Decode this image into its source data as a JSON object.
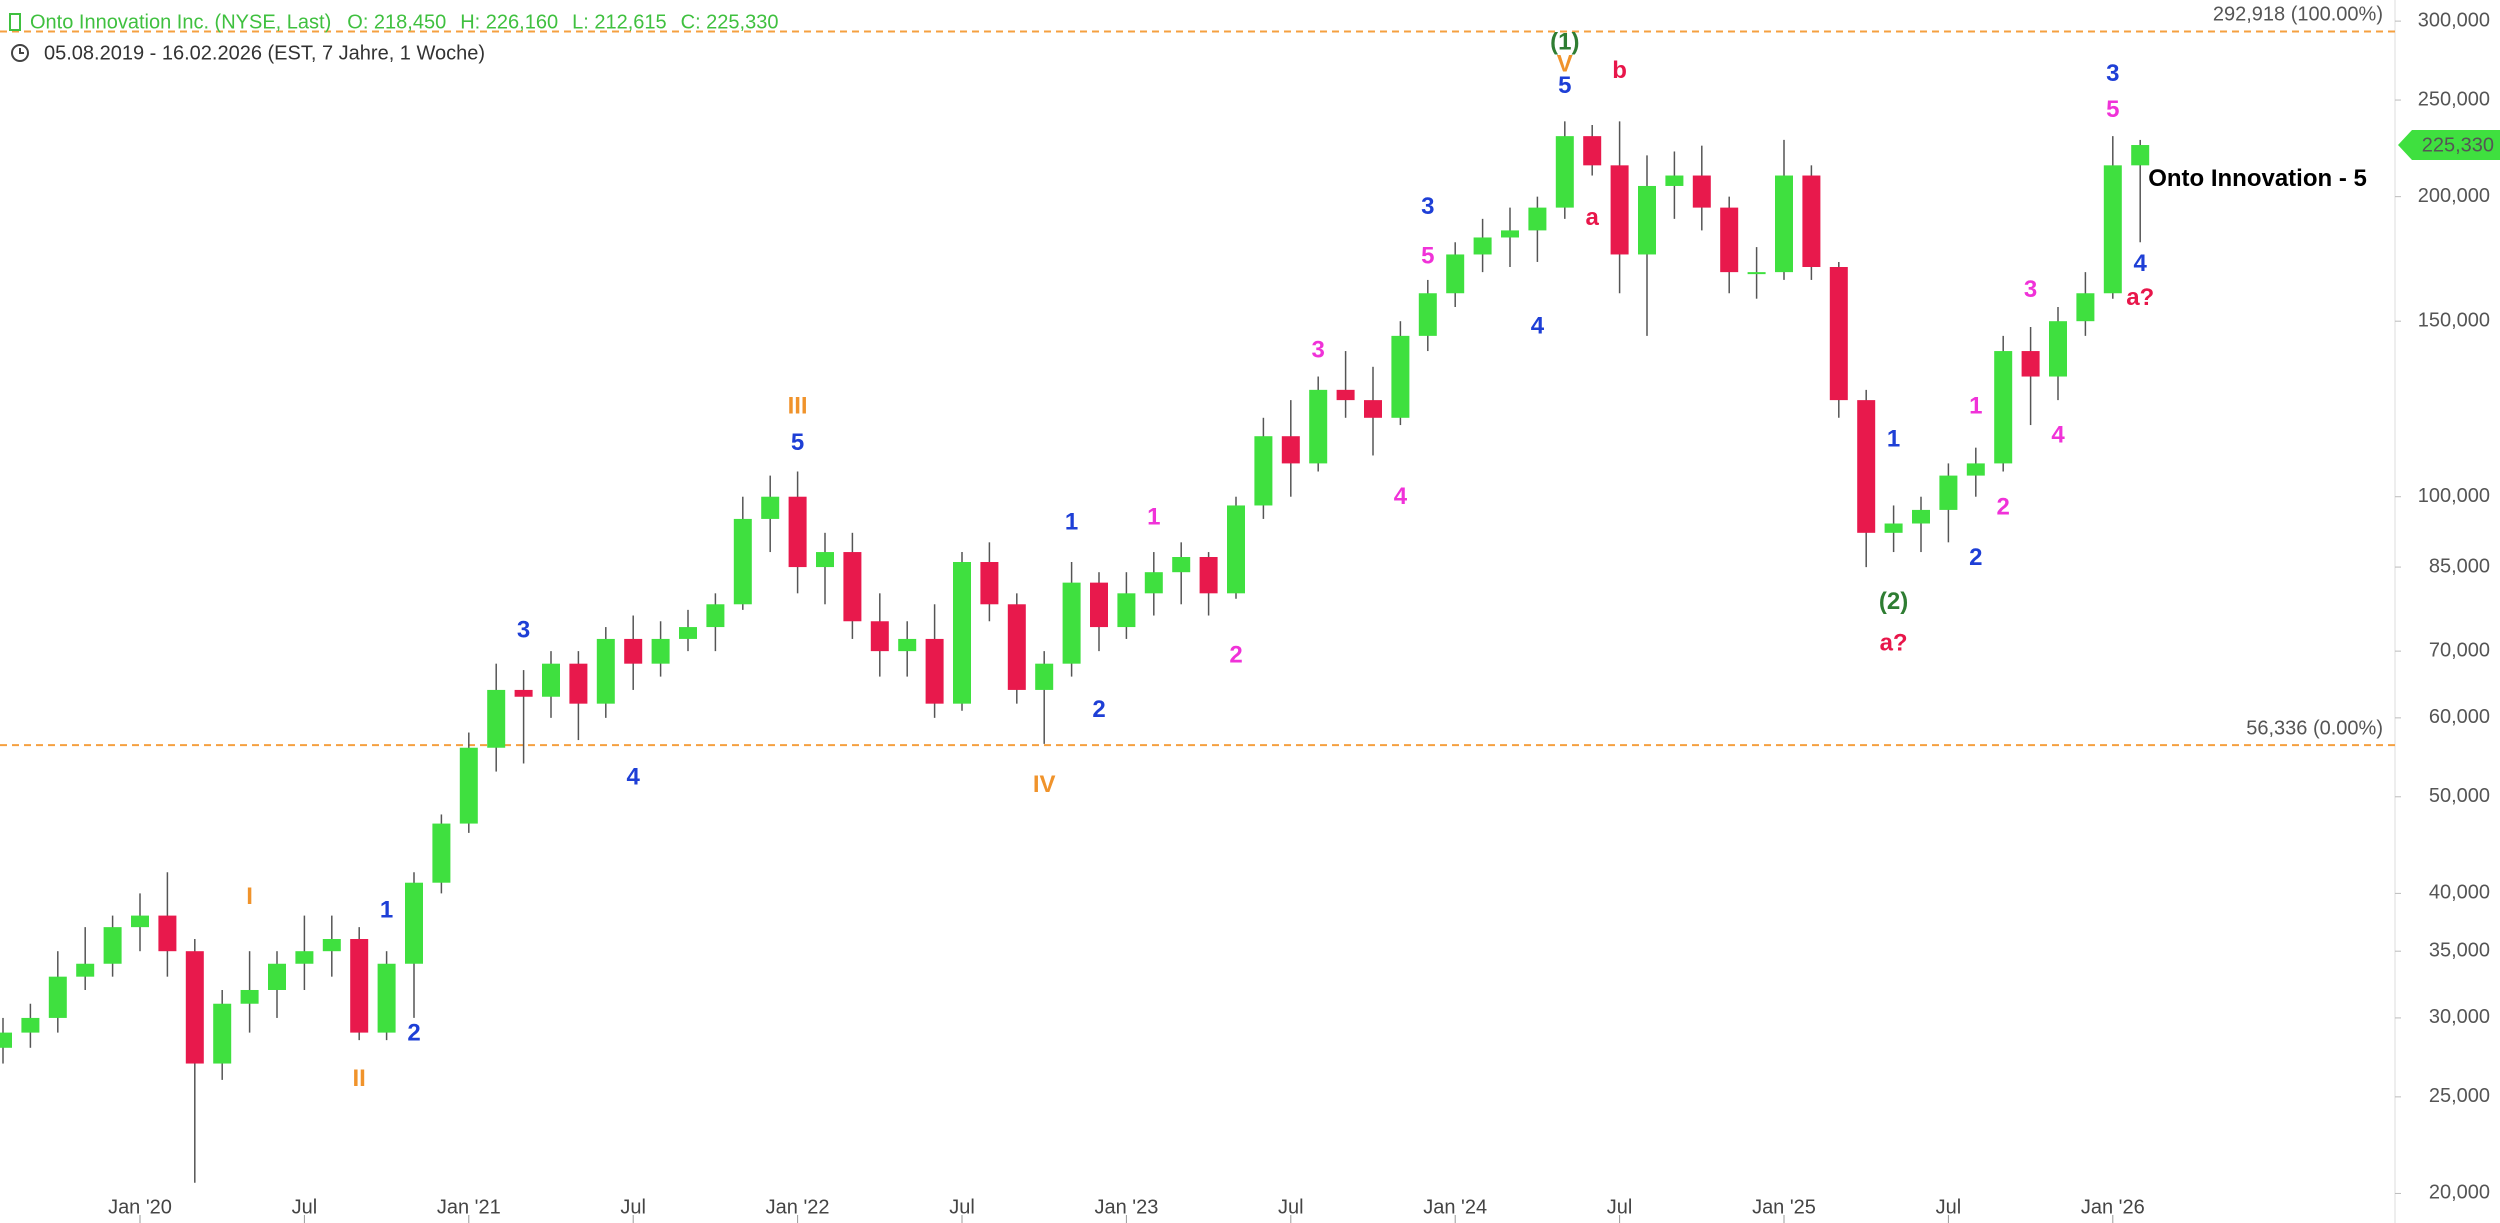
{
  "chart_data": {
    "type": "candlestick",
    "title": "Onto Innovation Inc. (NYSE, Last)",
    "ohlc_info": [
      {
        "value": 218.45,
        "label": "O: 218,450"
      },
      {
        "value": 226.16,
        "label": "H: 226,160"
      },
      {
        "value": 212.615,
        "label": "L: 212,615"
      },
      {
        "value": 225.33,
        "label": "C: 225,330"
      }
    ],
    "subtitle": "05.08.2019 - 16.02.2026  (EST, 7 Jahre, 1 Woche)",
    "up_color": "#3fe03f",
    "down_color": "#e8194c",
    "x": [
      "2019-08",
      "2019-09",
      "2019-10",
      "2019-11",
      "2019-12",
      "2020-01",
      "2020-02",
      "2020-03",
      "2020-04",
      "2020-05",
      "2020-06",
      "2020-07",
      "2020-08",
      "2020-09",
      "2020-10",
      "2020-11",
      "2020-12",
      "2021-01",
      "2021-02",
      "2021-03",
      "2021-04",
      "2021-05",
      "2021-06",
      "2021-07",
      "2021-08",
      "2021-09",
      "2021-10",
      "2021-11",
      "2021-12",
      "2022-01",
      "2022-02",
      "2022-03",
      "2022-04",
      "2022-05",
      "2022-06",
      "2022-07",
      "2022-08",
      "2022-09",
      "2022-10",
      "2022-11",
      "2022-12",
      "2023-01",
      "2023-02",
      "2023-03",
      "2023-04",
      "2023-05",
      "2023-06",
      "2023-07",
      "2023-08",
      "2023-09",
      "2023-10",
      "2023-11",
      "2023-12",
      "2024-01",
      "2024-02",
      "2024-03",
      "2024-04",
      "2024-05",
      "2024-06",
      "2024-07",
      "2024-08",
      "2024-09",
      "2024-10",
      "2024-11",
      "2024-12",
      "2025-01",
      "2025-02",
      "2025-03",
      "2025-04",
      "2025-05",
      "2025-06",
      "2025-07",
      "2025-08",
      "2025-09",
      "2025-10",
      "2025-11",
      "2025-12",
      "2026-01",
      "2026-02"
    ],
    "open": [
      28,
      29,
      30,
      33,
      34,
      37,
      38,
      35,
      27,
      31,
      32,
      34,
      35,
      36,
      29,
      34,
      41,
      47,
      56,
      64,
      63,
      68,
      62,
      72,
      68,
      72,
      74,
      78,
      95,
      100,
      85,
      88,
      75,
      70,
      72,
      62,
      86,
      78,
      64,
      68,
      82,
      74,
      80,
      84,
      87,
      80,
      98,
      115,
      108,
      128,
      125,
      120,
      145,
      160,
      175,
      182,
      185,
      195,
      230,
      215,
      175,
      205,
      210,
      195,
      168,
      168,
      210,
      170,
      125,
      92,
      94,
      97,
      105,
      108,
      140,
      132,
      150,
      160,
      215
    ],
    "high": [
      30,
      31,
      35,
      37,
      38,
      40,
      42,
      36,
      32,
      35,
      35,
      38,
      38,
      37,
      35,
      42,
      48,
      58,
      68,
      67,
      70,
      70,
      74,
      76,
      75,
      77,
      80,
      100,
      105,
      106,
      92,
      92,
      80,
      75,
      78,
      88,
      90,
      80,
      70,
      86,
      84,
      84,
      88,
      90,
      88,
      100,
      120,
      125,
      132,
      140,
      135,
      150,
      165,
      180,
      190,
      195,
      200,
      238,
      236,
      238,
      220,
      222,
      225,
      200,
      178,
      228,
      215,
      172,
      128,
      98,
      100,
      108,
      112,
      145,
      148,
      155,
      168,
      230,
      228
    ],
    "low": [
      27,
      28,
      29,
      32,
      33,
      35,
      33,
      20.5,
      26,
      29,
      30,
      32,
      33,
      28.5,
      28.5,
      30,
      40,
      46,
      53,
      54,
      60,
      57,
      60,
      64,
      66,
      70,
      70,
      77,
      88,
      80,
      78,
      72,
      66,
      66,
      60,
      61,
      75,
      62,
      56.5,
      66,
      70,
      72,
      76,
      78,
      76,
      79,
      95,
      100,
      106,
      120,
      110,
      118,
      140,
      155,
      168,
      170,
      172,
      190,
      210,
      160,
      145,
      190,
      185,
      160,
      158,
      165,
      165,
      120,
      85,
      88,
      88,
      90,
      100,
      106,
      118,
      125,
      145,
      158,
      180
    ],
    "close": [
      29,
      30,
      33,
      34,
      37,
      38,
      35,
      27,
      31,
      32,
      34,
      35,
      36,
      29,
      34,
      41,
      47,
      56,
      64,
      63,
      68,
      62,
      72,
      68,
      72,
      74,
      78,
      95,
      100,
      85,
      88,
      75,
      70,
      72,
      62,
      86,
      78,
      64,
      68,
      82,
      74,
      80,
      84,
      87,
      80,
      98,
      115,
      108,
      128,
      125,
      120,
      145,
      160,
      175,
      182,
      185,
      195,
      230,
      215,
      175,
      205,
      210,
      195,
      168,
      168,
      210,
      170,
      125,
      92,
      94,
      97,
      105,
      108,
      140,
      132,
      150,
      160,
      215,
      225.33
    ],
    "log_scale": true,
    "ylim": [
      19.7,
      315
    ],
    "yticks": [
      {
        "value": 300,
        "label": "300,000"
      },
      {
        "value": 250,
        "label": "250,000"
      },
      {
        "value": 200,
        "label": "200,000"
      },
      {
        "value": 150,
        "label": "150,000"
      },
      {
        "value": 100,
        "label": "100,000"
      },
      {
        "value": 85,
        "label": "85,000"
      },
      {
        "value": 70,
        "label": "70,000"
      },
      {
        "value": 60,
        "label": "60,000"
      },
      {
        "value": 50,
        "label": "50,000"
      },
      {
        "value": 40,
        "label": "40,000"
      },
      {
        "value": 35,
        "label": "35,000"
      },
      {
        "value": 30,
        "label": "30,000"
      },
      {
        "value": 25,
        "label": "25,000"
      },
      {
        "value": 20,
        "label": "20,000"
      }
    ],
    "xticks": [
      {
        "value": "2020-01",
        "label": "Jan '20"
      },
      {
        "value": "2020-07",
        "label": "Jul"
      },
      {
        "value": "2021-01",
        "label": "Jan '21"
      },
      {
        "value": "2021-07",
        "label": "Jul"
      },
      {
        "value": "2022-01",
        "label": "Jan '22"
      },
      {
        "value": "2022-07",
        "label": "Jul"
      },
      {
        "value": "2023-01",
        "label": "Jan '23"
      },
      {
        "value": "2023-07",
        "label": "Jul"
      },
      {
        "value": "2024-01",
        "label": "Jan '24"
      },
      {
        "value": "2024-07",
        "label": "Jul"
      },
      {
        "value": "2025-01",
        "label": "Jan '25"
      },
      {
        "value": "2025-07",
        "label": "Jul"
      },
      {
        "value": "2026-01",
        "label": "Jan '26"
      }
    ],
    "reference_lines": [
      {
        "value": 292.918,
        "label": "292,918 (100.00%)",
        "color": "#f5a040"
      },
      {
        "value": 56.336,
        "label": "56,336 (0.00%)",
        "color": "#f5a040"
      }
    ],
    "last_price": {
      "value": 225.33,
      "label": "225,330",
      "color": "#3fe03f"
    },
    "annotations": [
      {
        "text": "I",
        "x": "2020-05",
        "y": 39.6,
        "color": "#f0932b"
      },
      {
        "text": "II",
        "x": "2020-09",
        "y": 26.0,
        "color": "#f0932b"
      },
      {
        "text": "III",
        "x": "2022-01",
        "y": 123,
        "color": "#f0932b"
      },
      {
        "text": "IV",
        "x": "2022-10",
        "y": 51.3,
        "color": "#f0932b"
      },
      {
        "text": "V",
        "x": "2024-05",
        "y": 271,
        "color": "#f0932b"
      },
      {
        "text": "(1)",
        "x": "2024-05",
        "y": 285,
        "color": "#2e7d32"
      },
      {
        "text": "(2)",
        "x": "2025-05",
        "y": 78.3,
        "color": "#2e7d32"
      },
      {
        "text": "1",
        "x": "2020-10",
        "y": 38.4,
        "color": "#1e3fd6"
      },
      {
        "text": "2",
        "x": "2020-11",
        "y": 28.9,
        "color": "#1e3fd6"
      },
      {
        "text": "3",
        "x": "2021-03",
        "y": 73.3,
        "color": "#1e3fd6"
      },
      {
        "text": "4",
        "x": "2021-07",
        "y": 52.2,
        "color": "#1e3fd6"
      },
      {
        "text": "5",
        "x": "2022-01",
        "y": 113,
        "color": "#1e3fd6"
      },
      {
        "text": "1",
        "x": "2022-11",
        "y": 94.1,
        "color": "#1e3fd6"
      },
      {
        "text": "2",
        "x": "2022-12",
        "y": 61.0,
        "color": "#1e3fd6"
      },
      {
        "text": "3",
        "x": "2023-12",
        "y": 195,
        "color": "#1e3fd6"
      },
      {
        "text": "4",
        "x": "2024-04",
        "y": 148,
        "color": "#1e3fd6"
      },
      {
        "text": "5",
        "x": "2024-05",
        "y": 258,
        "color": "#1e3fd6"
      },
      {
        "text": "1",
        "x": "2023-02",
        "y": 95.2,
        "color": "#f032d8"
      },
      {
        "text": "2",
        "x": "2023-05",
        "y": 69.2,
        "color": "#f032d8"
      },
      {
        "text": "3",
        "x": "2023-08",
        "y": 140,
        "color": "#f032d8"
      },
      {
        "text": "4",
        "x": "2023-11",
        "y": 99.8,
        "color": "#f032d8"
      },
      {
        "text": "5",
        "x": "2023-12",
        "y": 174,
        "color": "#f032d8"
      },
      {
        "text": "a",
        "x": "2024-06",
        "y": 190,
        "color": "#e8164a"
      },
      {
        "text": "b",
        "x": "2024-07",
        "y": 267,
        "color": "#e8164a"
      },
      {
        "text": "a?",
        "x": "2025-05",
        "y": 71.1,
        "color": "#e8164a"
      },
      {
        "text": "1",
        "x": "2025-05",
        "y": 114,
        "color": "#1e3fd6"
      },
      {
        "text": "2",
        "x": "2025-08",
        "y": 86.7,
        "color": "#1e3fd6"
      },
      {
        "text": "1",
        "x": "2025-08",
        "y": 123,
        "color": "#f032d8"
      },
      {
        "text": "2",
        "x": "2025-09",
        "y": 97.4,
        "color": "#f032d8"
      },
      {
        "text": "3",
        "x": "2025-10",
        "y": 161,
        "color": "#f032d8"
      },
      {
        "text": "4",
        "x": "2025-11",
        "y": 115,
        "color": "#f032d8"
      },
      {
        "text": "5",
        "x": "2026-01",
        "y": 244,
        "color": "#f032d8"
      },
      {
        "text": "3",
        "x": "2026-01",
        "y": 265,
        "color": "#1e3fd6"
      },
      {
        "text": "4",
        "x": "2026-02",
        "y": 171,
        "color": "#1e3fd6"
      },
      {
        "text": "a?",
        "x": "2026-02",
        "y": 158,
        "color": "#e8164a"
      }
    ],
    "note": {
      "text": "Onto Innovation - 5",
      "x": "2026-02",
      "y": 208,
      "color": "#000000"
    }
  }
}
